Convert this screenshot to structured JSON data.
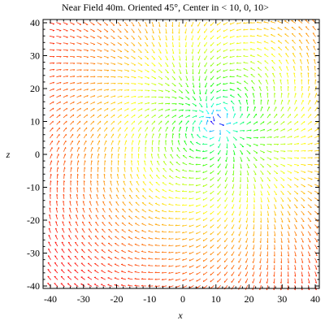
{
  "chart_data": {
    "type": "vector-field",
    "title": "Near Field 40m. Oriented 45°, Center in < 10, 0, 10>",
    "xlabel": "x",
    "ylabel": "z",
    "xlim": [
      -40,
      40
    ],
    "ylim": [
      -40,
      40
    ],
    "x_ticks": [
      "-40",
      "-30",
      "-20",
      "-10",
      "0",
      "10",
      "20",
      "30",
      "40"
    ],
    "y_ticks": [
      "-40",
      "-30",
      "-20",
      "-10",
      "0",
      "10",
      "20",
      "30",
      "40"
    ],
    "center": [
      10,
      10
    ],
    "orientation_deg": 45,
    "grid_points_per_axis": 40,
    "grid": false,
    "legend": "none",
    "colormap": [
      "#ff0000",
      "#ffff00",
      "#00ff00",
      "#00ffff",
      "#0000ff",
      "#ff00ff"
    ]
  }
}
